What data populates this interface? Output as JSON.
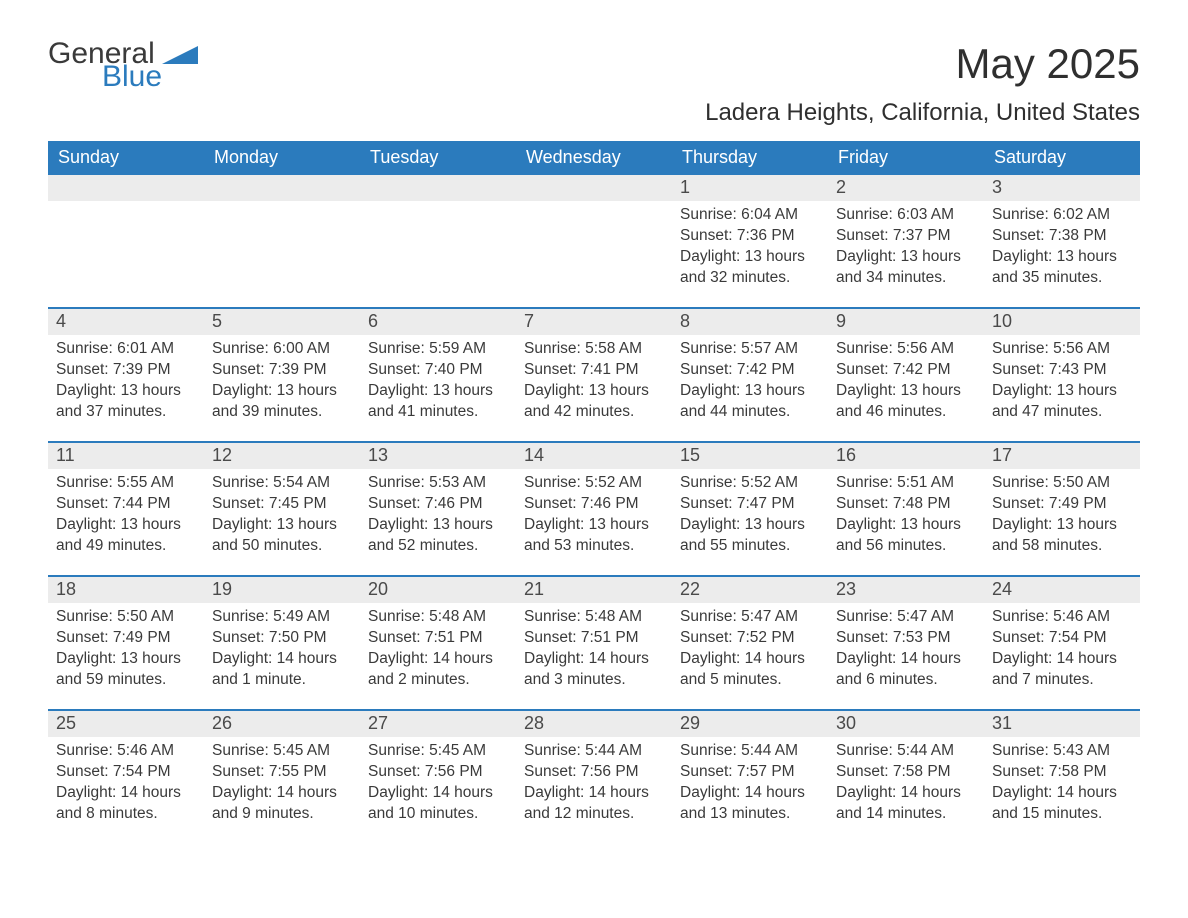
{
  "brand": {
    "general": "General",
    "blue": "Blue"
  },
  "title": "May 2025",
  "location": "Ladera Heights, California, United States",
  "colors": {
    "header_bg": "#2b7bbd",
    "header_text": "#ffffff",
    "daynum_bg": "#ececec",
    "text": "#3a3a3a",
    "rule": "#2b7bbd"
  },
  "dow": [
    "Sunday",
    "Monday",
    "Tuesday",
    "Wednesday",
    "Thursday",
    "Friday",
    "Saturday"
  ],
  "labels": {
    "sunrise": "Sunrise: ",
    "sunset": "Sunset: ",
    "daylight": "Daylight: "
  },
  "weeks": [
    [
      null,
      null,
      null,
      null,
      {
        "n": "1",
        "sr": "6:04 AM",
        "ss": "7:36 PM",
        "dl": "13 hours and 32 minutes."
      },
      {
        "n": "2",
        "sr": "6:03 AM",
        "ss": "7:37 PM",
        "dl": "13 hours and 34 minutes."
      },
      {
        "n": "3",
        "sr": "6:02 AM",
        "ss": "7:38 PM",
        "dl": "13 hours and 35 minutes."
      }
    ],
    [
      {
        "n": "4",
        "sr": "6:01 AM",
        "ss": "7:39 PM",
        "dl": "13 hours and 37 minutes."
      },
      {
        "n": "5",
        "sr": "6:00 AM",
        "ss": "7:39 PM",
        "dl": "13 hours and 39 minutes."
      },
      {
        "n": "6",
        "sr": "5:59 AM",
        "ss": "7:40 PM",
        "dl": "13 hours and 41 minutes."
      },
      {
        "n": "7",
        "sr": "5:58 AM",
        "ss": "7:41 PM",
        "dl": "13 hours and 42 minutes."
      },
      {
        "n": "8",
        "sr": "5:57 AM",
        "ss": "7:42 PM",
        "dl": "13 hours and 44 minutes."
      },
      {
        "n": "9",
        "sr": "5:56 AM",
        "ss": "7:42 PM",
        "dl": "13 hours and 46 minutes."
      },
      {
        "n": "10",
        "sr": "5:56 AM",
        "ss": "7:43 PM",
        "dl": "13 hours and 47 minutes."
      }
    ],
    [
      {
        "n": "11",
        "sr": "5:55 AM",
        "ss": "7:44 PM",
        "dl": "13 hours and 49 minutes."
      },
      {
        "n": "12",
        "sr": "5:54 AM",
        "ss": "7:45 PM",
        "dl": "13 hours and 50 minutes."
      },
      {
        "n": "13",
        "sr": "5:53 AM",
        "ss": "7:46 PM",
        "dl": "13 hours and 52 minutes."
      },
      {
        "n": "14",
        "sr": "5:52 AM",
        "ss": "7:46 PM",
        "dl": "13 hours and 53 minutes."
      },
      {
        "n": "15",
        "sr": "5:52 AM",
        "ss": "7:47 PM",
        "dl": "13 hours and 55 minutes."
      },
      {
        "n": "16",
        "sr": "5:51 AM",
        "ss": "7:48 PM",
        "dl": "13 hours and 56 minutes."
      },
      {
        "n": "17",
        "sr": "5:50 AM",
        "ss": "7:49 PM",
        "dl": "13 hours and 58 minutes."
      }
    ],
    [
      {
        "n": "18",
        "sr": "5:50 AM",
        "ss": "7:49 PM",
        "dl": "13 hours and 59 minutes."
      },
      {
        "n": "19",
        "sr": "5:49 AM",
        "ss": "7:50 PM",
        "dl": "14 hours and 1 minute."
      },
      {
        "n": "20",
        "sr": "5:48 AM",
        "ss": "7:51 PM",
        "dl": "14 hours and 2 minutes."
      },
      {
        "n": "21",
        "sr": "5:48 AM",
        "ss": "7:51 PM",
        "dl": "14 hours and 3 minutes."
      },
      {
        "n": "22",
        "sr": "5:47 AM",
        "ss": "7:52 PM",
        "dl": "14 hours and 5 minutes."
      },
      {
        "n": "23",
        "sr": "5:47 AM",
        "ss": "7:53 PM",
        "dl": "14 hours and 6 minutes."
      },
      {
        "n": "24",
        "sr": "5:46 AM",
        "ss": "7:54 PM",
        "dl": "14 hours and 7 minutes."
      }
    ],
    [
      {
        "n": "25",
        "sr": "5:46 AM",
        "ss": "7:54 PM",
        "dl": "14 hours and 8 minutes."
      },
      {
        "n": "26",
        "sr": "5:45 AM",
        "ss": "7:55 PM",
        "dl": "14 hours and 9 minutes."
      },
      {
        "n": "27",
        "sr": "5:45 AM",
        "ss": "7:56 PM",
        "dl": "14 hours and 10 minutes."
      },
      {
        "n": "28",
        "sr": "5:44 AM",
        "ss": "7:56 PM",
        "dl": "14 hours and 12 minutes."
      },
      {
        "n": "29",
        "sr": "5:44 AM",
        "ss": "7:57 PM",
        "dl": "14 hours and 13 minutes."
      },
      {
        "n": "30",
        "sr": "5:44 AM",
        "ss": "7:58 PM",
        "dl": "14 hours and 14 minutes."
      },
      {
        "n": "31",
        "sr": "5:43 AM",
        "ss": "7:58 PM",
        "dl": "14 hours and 15 minutes."
      }
    ]
  ]
}
